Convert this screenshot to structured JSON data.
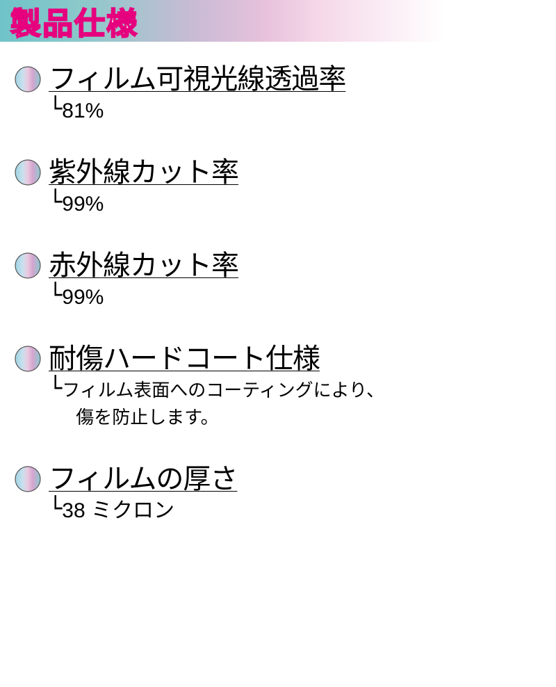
{
  "header": {
    "title": "製品仕様",
    "gradient_colors": [
      "#6fc3c8",
      "#c9bbd4",
      "#e8c2dc",
      "#ffffff"
    ],
    "title_color": "#ffffff",
    "title_outline_color": "#e6007e"
  },
  "bullet_gradient": {
    "stop1": "#b4ddee",
    "stop2": "#e8b8dc",
    "stop3": "#c999c6",
    "stop4": "#7fc4d2"
  },
  "specs": [
    {
      "label": "フィルム可視光線透過率",
      "value": "81%",
      "multiline": false
    },
    {
      "label": "紫外線カット率",
      "value": "99%",
      "multiline": false
    },
    {
      "label": "赤外線カット率",
      "value": "99%",
      "multiline": false
    },
    {
      "label": "耐傷ハードコート仕様",
      "value": "フィルム表面へのコーティングにより、",
      "value_line2": "傷を防止します。",
      "multiline": true
    },
    {
      "label": "フィルムの厚さ",
      "value": "38 ミクロン",
      "multiline": false
    }
  ]
}
